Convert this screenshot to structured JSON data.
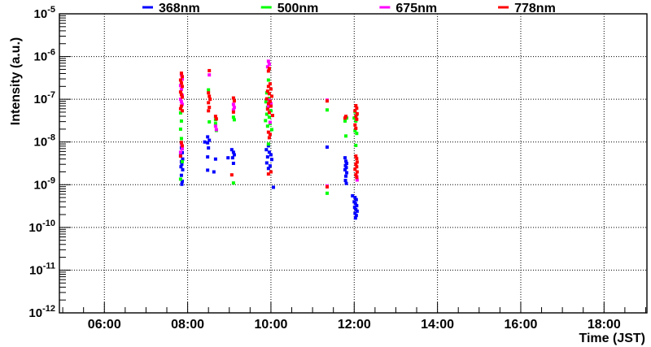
{
  "chart_data": {
    "type": "scatter",
    "title": "",
    "points_format": "[time_hours_JST_decimal, log10_intensity_au]",
    "marker": "filled-square",
    "x_axis": {
      "label": "Time (JST)",
      "min": 4.92,
      "max": 19.03,
      "major_ticks": [
        6,
        8,
        10,
        12,
        14,
        16,
        18
      ],
      "major_tick_labels": [
        "06:00",
        "08:00",
        "10:00",
        "12:00",
        "14:00",
        "16:00",
        "18:00"
      ],
      "minor_tick_step": 0.5,
      "grid": "dotted"
    },
    "y_axis": {
      "label": "Intensity (a.u.)",
      "scale": "log",
      "min": 1e-12,
      "max": 1e-05,
      "decade_exponents": [
        -5,
        -6,
        -7,
        -8,
        -9,
        -10,
        -11,
        -12
      ],
      "grid": "dotted"
    },
    "legend": {
      "position": "top",
      "entries": [
        {
          "label": "368nm",
          "color": "#0000ff"
        },
        {
          "label": "500nm",
          "color": "#00ff00"
        },
        {
          "label": "675nm",
          "color": "#ff00ff"
        },
        {
          "label": "778nm",
          "color": "#ff0000"
        }
      ]
    },
    "series": [
      {
        "name": "368nm",
        "color": "#0000ff",
        "points": [
          [
            7.85,
            -8.14
          ],
          [
            7.87,
            -8.25
          ],
          [
            7.83,
            -8.32
          ],
          [
            7.88,
            -8.4
          ],
          [
            7.85,
            -8.46
          ],
          [
            7.86,
            -8.52
          ],
          [
            7.84,
            -8.58
          ],
          [
            7.88,
            -8.65
          ],
          [
            7.85,
            -8.78
          ],
          [
            7.87,
            -8.92
          ],
          [
            7.86,
            -8.99
          ],
          [
            8.41,
            -8.0
          ],
          [
            8.48,
            -7.88
          ],
          [
            8.52,
            -7.96
          ],
          [
            8.48,
            -8.02
          ],
          [
            8.5,
            -8.14
          ],
          [
            8.48,
            -8.35
          ],
          [
            8.67,
            -8.4
          ],
          [
            8.48,
            -8.66
          ],
          [
            8.63,
            -8.7
          ],
          [
            8.97,
            -8.37
          ],
          [
            9.06,
            -8.18
          ],
          [
            9.1,
            -8.24
          ],
          [
            9.12,
            -8.3
          ],
          [
            9.08,
            -8.37
          ],
          [
            9.1,
            -8.5
          ],
          [
            9.94,
            -8.09
          ],
          [
            9.89,
            -8.18
          ],
          [
            9.96,
            -8.24
          ],
          [
            10.0,
            -8.3
          ],
          [
            9.92,
            -8.35
          ],
          [
            10.02,
            -8.41
          ],
          [
            9.9,
            -8.49
          ],
          [
            9.98,
            -8.56
          ],
          [
            9.94,
            -8.62
          ],
          [
            10.06,
            -9.06
          ],
          [
            11.35,
            -8.12
          ],
          [
            11.78,
            -8.37
          ],
          [
            11.8,
            -8.45
          ],
          [
            11.82,
            -8.5
          ],
          [
            11.79,
            -8.55
          ],
          [
            11.81,
            -8.6
          ],
          [
            11.78,
            -8.65
          ],
          [
            11.82,
            -8.72
          ],
          [
            11.8,
            -8.8
          ],
          [
            11.79,
            -8.9
          ],
          [
            11.81,
            -8.97
          ],
          [
            11.96,
            -9.26
          ],
          [
            12.02,
            -9.3
          ],
          [
            12.05,
            -9.35
          ],
          [
            12.0,
            -9.4
          ],
          [
            12.03,
            -9.44
          ],
          [
            12.06,
            -9.49
          ],
          [
            12.01,
            -9.53
          ],
          [
            12.04,
            -9.58
          ],
          [
            12.07,
            -9.62
          ],
          [
            12.02,
            -9.67
          ],
          [
            12.05,
            -9.72
          ],
          [
            12.03,
            -9.78
          ]
        ]
      },
      {
        "name": "500nm",
        "color": "#00ff00",
        "points": [
          [
            7.83,
            -7.32
          ],
          [
            7.85,
            -7.51
          ],
          [
            7.83,
            -7.7
          ],
          [
            7.85,
            -7.92
          ],
          [
            7.87,
            -8.46
          ],
          [
            7.83,
            -8.87
          ],
          [
            8.5,
            -6.78
          ],
          [
            8.52,
            -7.53
          ],
          [
            8.67,
            -7.48
          ],
          [
            8.67,
            -7.57
          ],
          [
            8.69,
            -7.73
          ],
          [
            9.1,
            -7.42
          ],
          [
            9.12,
            -7.48
          ],
          [
            9.1,
            -8.96
          ],
          [
            9.94,
            -6.55
          ],
          [
            9.9,
            -6.85
          ],
          [
            9.96,
            -6.98
          ],
          [
            9.88,
            -7.06
          ],
          [
            9.98,
            -7.12
          ],
          [
            9.92,
            -7.19
          ],
          [
            10.0,
            -7.27
          ],
          [
            9.9,
            -7.35
          ],
          [
            9.96,
            -7.42
          ],
          [
            9.87,
            -7.5
          ],
          [
            9.98,
            -7.57
          ],
          [
            9.92,
            -7.63
          ],
          [
            10.02,
            -7.71
          ],
          [
            9.94,
            -8.05
          ],
          [
            11.35,
            -7.25
          ],
          [
            11.35,
            -9.2
          ],
          [
            11.78,
            -7.51
          ],
          [
            11.82,
            -7.44
          ],
          [
            11.8,
            -7.86
          ],
          [
            12.02,
            -7.29
          ],
          [
            12.06,
            -7.36
          ],
          [
            12.0,
            -7.44
          ],
          [
            12.04,
            -7.51
          ],
          [
            12.02,
            -7.74
          ],
          [
            12.06,
            -7.8
          ],
          [
            12.04,
            -8.08
          ]
        ]
      },
      {
        "name": "675nm",
        "color": "#ff00ff",
        "points": [
          [
            7.85,
            -6.43
          ],
          [
            7.87,
            -6.53
          ],
          [
            7.83,
            -6.68
          ],
          [
            7.85,
            -6.77
          ],
          [
            7.87,
            -6.91
          ],
          [
            7.83,
            -7.0
          ],
          [
            7.85,
            -7.06
          ],
          [
            7.87,
            -7.12
          ],
          [
            7.85,
            -8.05
          ],
          [
            7.87,
            -8.16
          ],
          [
            7.83,
            -8.24
          ],
          [
            8.52,
            -6.43
          ],
          [
            8.67,
            -7.63
          ],
          [
            8.69,
            -7.71
          ],
          [
            9.1,
            -7.12
          ],
          [
            9.12,
            -7.19
          ],
          [
            9.1,
            -7.25
          ],
          [
            9.94,
            -6.11
          ],
          [
            9.96,
            -6.18
          ],
          [
            9.92,
            -6.24
          ],
          [
            9.96,
            -7.02
          ],
          [
            10.0,
            -7.1
          ],
          [
            9.94,
            -7.17
          ],
          [
            9.98,
            -7.54
          ],
          [
            11.35,
            -7.02
          ],
          [
            11.35,
            -9.03
          ],
          [
            12.06,
            -8.81
          ],
          [
            12.07,
            -8.89
          ]
        ]
      },
      {
        "name": "778nm",
        "color": "#ff0000",
        "points": [
          [
            7.85,
            -6.39
          ],
          [
            7.87,
            -6.47
          ],
          [
            7.83,
            -6.55
          ],
          [
            7.85,
            -6.62
          ],
          [
            7.87,
            -6.7
          ],
          [
            7.83,
            -6.83
          ],
          [
            7.85,
            -6.89
          ],
          [
            7.87,
            -6.95
          ],
          [
            7.85,
            -7.16
          ],
          [
            7.83,
            -7.22
          ],
          [
            7.87,
            -7.27
          ],
          [
            7.85,
            -8.01
          ],
          [
            7.87,
            -8.09
          ],
          [
            7.83,
            -8.33
          ],
          [
            8.52,
            -6.33
          ],
          [
            8.5,
            -6.85
          ],
          [
            8.52,
            -6.93
          ],
          [
            8.54,
            -7.0
          ],
          [
            8.5,
            -7.08
          ],
          [
            8.52,
            -7.19
          ],
          [
            8.5,
            -7.27
          ],
          [
            8.67,
            -7.4
          ],
          [
            8.69,
            -7.46
          ],
          [
            9.1,
            -6.97
          ],
          [
            9.12,
            -7.04
          ],
          [
            9.1,
            -7.3
          ],
          [
            9.06,
            -8.77
          ],
          [
            9.96,
            -6.28
          ],
          [
            9.94,
            -6.34
          ],
          [
            9.98,
            -6.64
          ],
          [
            9.94,
            -6.7
          ],
          [
            10.0,
            -6.76
          ],
          [
            9.92,
            -6.81
          ],
          [
            9.96,
            -6.87
          ],
          [
            10.02,
            -6.93
          ],
          [
            9.9,
            -6.99
          ],
          [
            9.98,
            -7.05
          ],
          [
            9.94,
            -7.1
          ],
          [
            10.0,
            -7.16
          ],
          [
            9.92,
            -7.23
          ],
          [
            9.96,
            -7.31
          ],
          [
            10.04,
            -7.38
          ],
          [
            9.94,
            -7.77
          ],
          [
            9.98,
            -7.82
          ],
          [
            9.96,
            -7.9
          ],
          [
            10.0,
            -8.7
          ],
          [
            9.94,
            -8.75
          ],
          [
            11.35,
            -7.04
          ],
          [
            11.35,
            -9.05
          ],
          [
            11.78,
            -7.44
          ],
          [
            11.8,
            -7.4
          ],
          [
            12.04,
            -7.15
          ],
          [
            12.06,
            -7.21
          ],
          [
            12.02,
            -7.27
          ],
          [
            12.07,
            -7.34
          ],
          [
            12.04,
            -7.4
          ],
          [
            12.06,
            -7.47
          ],
          [
            12.02,
            -7.6
          ],
          [
            12.04,
            -7.68
          ],
          [
            12.04,
            -8.33
          ],
          [
            12.06,
            -8.39
          ],
          [
            12.07,
            -8.47
          ],
          [
            12.04,
            -8.52
          ],
          [
            12.06,
            -8.58
          ],
          [
            12.02,
            -8.64
          ],
          [
            12.07,
            -8.7
          ],
          [
            12.04,
            -8.77
          ],
          [
            12.06,
            -8.83
          ]
        ]
      }
    ]
  }
}
